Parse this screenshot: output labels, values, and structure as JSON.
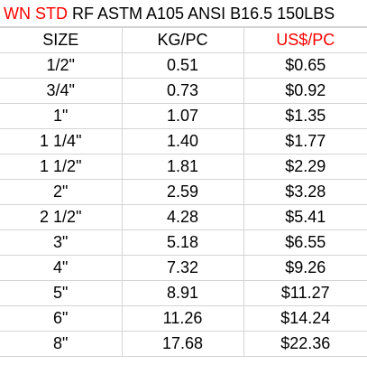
{
  "title": {
    "highlight": "WN STD",
    "rest": "RF ASTM A105 ANSI B16.5 150LBS"
  },
  "table": {
    "header": [
      "SIZE",
      "KG/PC",
      "US$/PC"
    ],
    "rows": [
      [
        "1/2\"",
        "0.51",
        "$0.65"
      ],
      [
        "3/4\"",
        "0.73",
        "$0.92"
      ],
      [
        "1\"",
        "1.07",
        "$1.35"
      ],
      [
        "1 1/4\"",
        "1.40",
        "$1.77"
      ],
      [
        "1 1/2\"",
        "1.81",
        "$2.29"
      ],
      [
        "2\"",
        "2.59",
        "$3.28"
      ],
      [
        "2 1/2\"",
        "4.28",
        "$5.41"
      ],
      [
        "3\"",
        "5.18",
        "$6.55"
      ],
      [
        "4\"",
        "7.32",
        "$9.26"
      ],
      [
        "5\"",
        "8.91",
        "$11.27"
      ],
      [
        "6\"",
        "11.26",
        "$14.24"
      ],
      [
        "8\"",
        "17.68",
        "$22.36"
      ]
    ]
  }
}
